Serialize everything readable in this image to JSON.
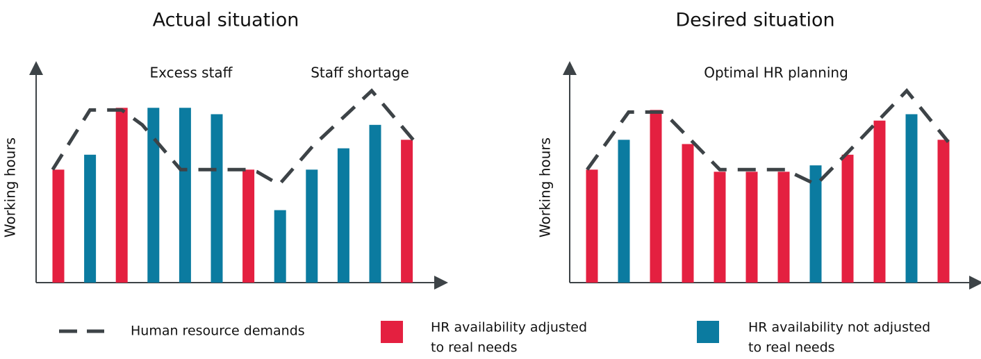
{
  "chart_data": [
    {
      "type": "bar",
      "title": "Actual situation",
      "y_label": "Working hours",
      "annotations": [
        "Excess staff",
        "Staff shortage"
      ],
      "categories": [
        null,
        null,
        null,
        null,
        null,
        null,
        null,
        null,
        null,
        null,
        null,
        null
      ],
      "ylim": [
        0,
        100
      ],
      "series": [
        {
          "name": "bars",
          "values": [
            53,
            60,
            82,
            82,
            82,
            79,
            53,
            34,
            53,
            63,
            74,
            67
          ],
          "colors": [
            "#e42040",
            "#0b7ba0",
            "#e42040",
            "#0b7ba0",
            "#0b7ba0",
            "#0b7ba0",
            "#e42040",
            "#0b7ba0",
            "#0b7ba0",
            "#0b7ba0",
            "#0b7ba0",
            "#e42040"
          ]
        },
        {
          "name": "demand",
          "type": "line",
          "color": "#3d4347",
          "x": [
            -0.18,
            1,
            2,
            2.65,
            3.86,
            6,
            6.27,
            6.97,
            8.03,
            9.89,
            11.2
          ],
          "values": [
            53,
            81,
            81,
            74,
            53,
            53,
            52,
            46,
            64,
            90,
            67
          ]
        }
      ]
    },
    {
      "type": "bar",
      "title": "Desired situation",
      "y_label": "Working hours",
      "annotations": [
        "Optimal HR planning"
      ],
      "categories": [
        null,
        null,
        null,
        null,
        null,
        null,
        null,
        null,
        null,
        null,
        null,
        null
      ],
      "ylim": [
        0,
        100
      ],
      "series": [
        {
          "name": "bars",
          "values": [
            53,
            67,
            81,
            65,
            52,
            52,
            52,
            55,
            60,
            76,
            79,
            67
          ],
          "colors": [
            "#e42040",
            "#0b7ba0",
            "#e42040",
            "#e42040",
            "#e42040",
            "#e42040",
            "#e42040",
            "#0b7ba0",
            "#e42040",
            "#e42040",
            "#0b7ba0",
            "#e42040"
          ]
        },
        {
          "name": "demand",
          "type": "line",
          "color": "#3d4347",
          "x": [
            -0.15,
            1.15,
            2.24,
            4,
            6.04,
            7.02,
            8,
            9.85,
            11.15
          ],
          "values": [
            53,
            80,
            80,
            53,
            53,
            46,
            61,
            90,
            66
          ]
        }
      ]
    }
  ],
  "legend": [
    {
      "lines": [
        "Human resource demands"
      ],
      "color": "#3d4347",
      "kind": "dash"
    },
    {
      "lines": [
        "HR availability adjusted",
        "to real needs"
      ],
      "color": "#e42040",
      "kind": "box"
    },
    {
      "lines": [
        "HR availability not adjusted",
        "to real needs"
      ],
      "color": "#0b7ba0",
      "kind": "box"
    }
  ]
}
